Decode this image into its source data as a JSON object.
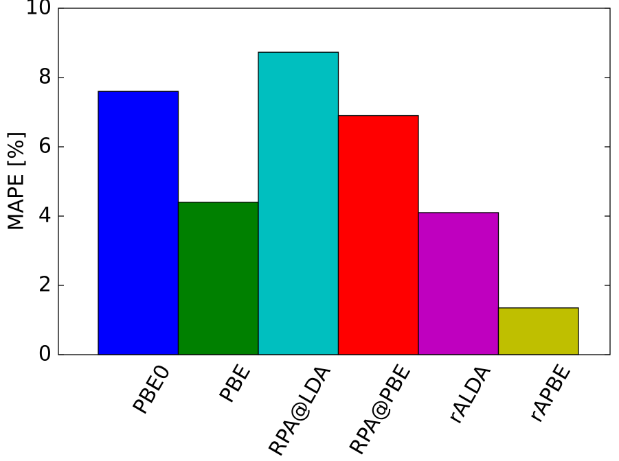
{
  "chart_data": {
    "type": "bar",
    "y_label": "MAPE [%]",
    "categories": [
      "PBE0",
      "PBE",
      "RPA@LDA",
      "RPA@PBE",
      "rALDA",
      "rAPBE"
    ],
    "values": [
      7.6,
      4.4,
      8.73,
      6.9,
      4.1,
      1.35
    ],
    "colors": [
      "#0000ff",
      "#008000",
      "#00bfbf",
      "#ff0000",
      "#bf00bf",
      "#bfbf00"
    ],
    "ylim": [
      0,
      10
    ],
    "yticks": [
      0,
      2,
      4,
      6,
      8,
      10
    ]
  }
}
